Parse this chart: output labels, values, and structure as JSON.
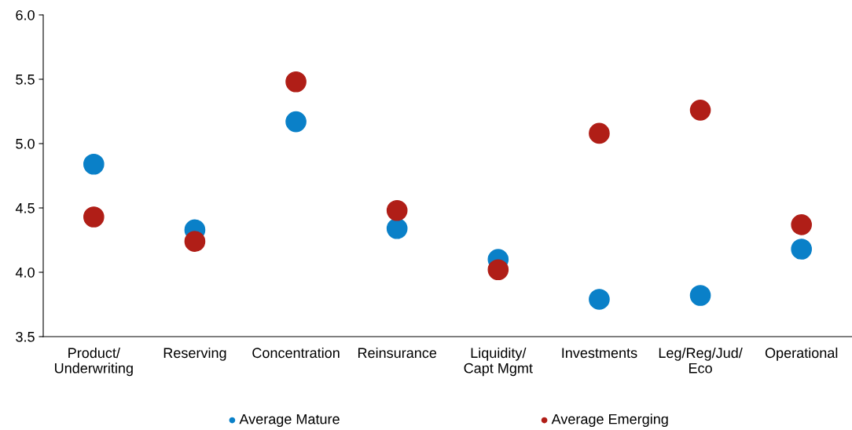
{
  "chart_data": {
    "type": "scatter",
    "categories": [
      "Product/\nUnderwriting",
      "Reserving",
      "Concentration",
      "Reinsurance",
      "Liquidity/\nCapt Mgmt",
      "Investments",
      "Leg/Reg/Jud/\nEco",
      "Operational"
    ],
    "series": [
      {
        "name": "Average Mature",
        "color": "#0a80c8",
        "values": [
          4.84,
          4.33,
          5.17,
          4.34,
          4.1,
          3.79,
          3.82,
          4.18
        ]
      },
      {
        "name": "Average Emerging",
        "color": "#b01e17",
        "values": [
          4.43,
          4.24,
          5.48,
          4.48,
          4.02,
          5.08,
          5.26,
          4.37
        ]
      }
    ],
    "ylim": [
      3.5,
      6.0
    ],
    "yticks": [
      3.5,
      {
        "value": 4,
        "label": "4.0"
      },
      4.5,
      {
        "value": 5,
        "label": "5.0"
      },
      5.5,
      {
        "value": 6,
        "label": "6.0"
      }
    ],
    "grid": false,
    "legend": "bottom",
    "marker": "circle"
  }
}
